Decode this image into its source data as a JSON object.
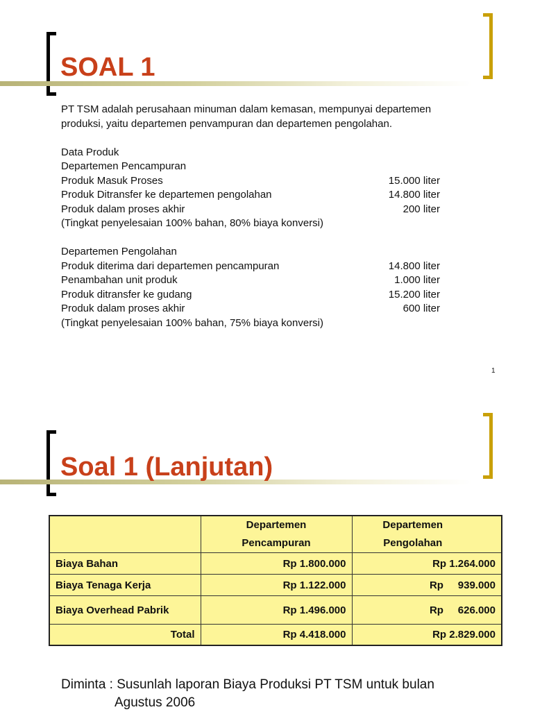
{
  "slide1": {
    "title": "SOAL 1",
    "intro": [
      "PT TSM adalah perusahaan minuman dalam kemasan, mempunyai departemen",
      "produksi, yaitu departemen penvampuran dan departemen pengolahan."
    ],
    "data_label": "Data Produk",
    "dept1": {
      "name": "Departemen Pencampuran",
      "items": [
        {
          "label": "Produk Masuk Proses",
          "value": "15.000 liter"
        },
        {
          "label": "Produk Ditransfer ke departemen pengolahan",
          "value": "14.800 liter"
        },
        {
          "label": "Produk dalam proses akhir",
          "value": "200 liter"
        }
      ],
      "note": "(Tingkat penyelesaian 100% bahan, 80% biaya konversi)"
    },
    "dept2": {
      "name": "Departemen Pengolahan",
      "items": [
        {
          "label": "Produk diterima dari departemen pencampuran",
          "value": "14.800 liter"
        },
        {
          "label": "Penambahan unit produk",
          "value": "1.000 liter"
        },
        {
          "label": "Produk ditransfer ke gudang",
          "value": "15.200 liter"
        },
        {
          "label": "Produk dalam proses akhir",
          "value": "600 liter"
        }
      ],
      "note": "(Tingkat penyelesaian 100% bahan, 75% biaya konversi)"
    },
    "page_number": "1"
  },
  "slide2": {
    "title": "Soal 1 (Lanjutan)",
    "table": {
      "headers": [
        [
          "Departemen",
          "Pencampuran"
        ],
        [
          "Departemen",
          "Pengolahan"
        ]
      ],
      "rows": [
        {
          "label": "Biaya Bahan",
          "c1": "Rp 1.800.000",
          "c2": "Rp 1.264.000"
        },
        {
          "label": "Biaya Tenaga Kerja",
          "c1": "Rp 1.122.000",
          "c2": "Rp     939.000"
        },
        {
          "label": "Biaya Overhead Pabrik",
          "c1": "Rp 1.496.000",
          "c2": "Rp     626.000"
        }
      ],
      "total": {
        "label": "Total",
        "c1": "Rp 4.418.000",
        "c2": "Rp 2.829.000"
      }
    },
    "request": [
      "Diminta : Susunlah laporan Biaya Produksi PT TSM untuk bulan",
      "Agustus 2006"
    ]
  }
}
